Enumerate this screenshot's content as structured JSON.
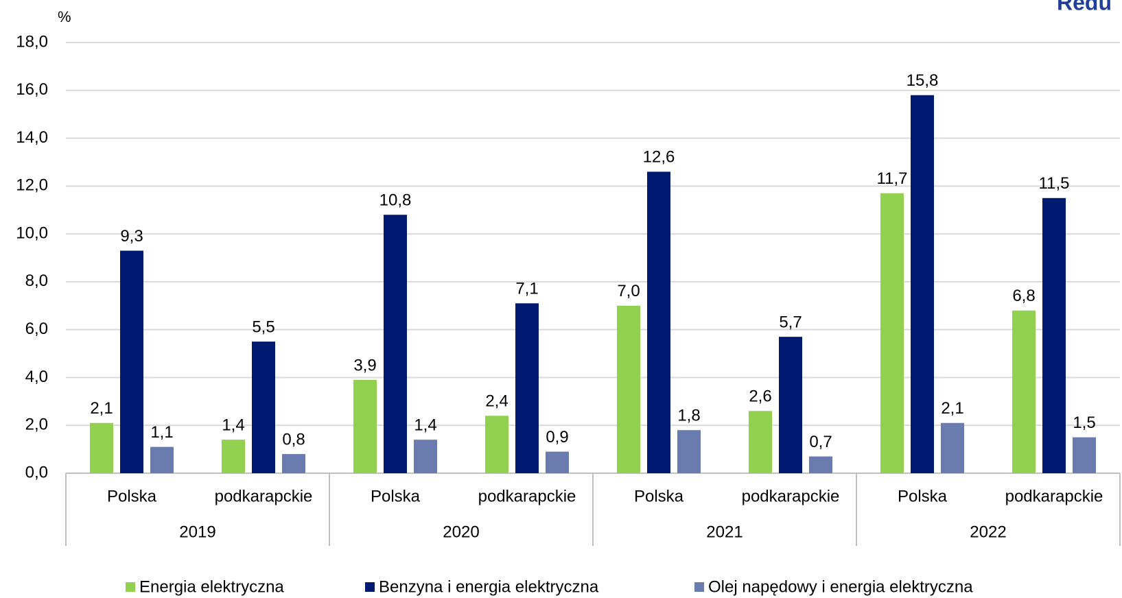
{
  "chart_data": {
    "type": "bar",
    "title": "Redu",
    "y_axis_label": "%",
    "categories": [
      "Polska",
      "podkarapckie",
      "Polska",
      "podkarapckie",
      "Polska",
      "podkarapckie",
      "Polska",
      "podkarapckie"
    ],
    "groups": [
      "2019",
      "2020",
      "2021",
      "2022"
    ],
    "series": [
      {
        "name": "Energia elektryczna",
        "color": "#92d050",
        "values": [
          2.1,
          1.4,
          3.9,
          2.4,
          7.0,
          2.6,
          11.7,
          6.8
        ],
        "value_labels": [
          "2,1",
          "1,4",
          "3,9",
          "2,4",
          "7,0",
          "2,6",
          "11,7",
          "6,8"
        ]
      },
      {
        "name": "Benzyna i energia elektryczna",
        "color": "#001a72",
        "values": [
          9.3,
          5.5,
          10.8,
          7.1,
          12.6,
          5.7,
          15.8,
          11.5
        ],
        "value_labels": [
          "9,3",
          "5,5",
          "10,8",
          "7,1",
          "12,6",
          "5,7",
          "15,8",
          "11,5"
        ]
      },
      {
        "name": "Olej napędowy i energia elektryczna",
        "color": "#6a7bb0",
        "values": [
          1.1,
          0.8,
          1.4,
          0.9,
          1.8,
          0.7,
          2.1,
          1.5
        ],
        "value_labels": [
          "1,1",
          "0,8",
          "1,4",
          "0,9",
          "1,8",
          "0,7",
          "2,1",
          "1,5"
        ]
      }
    ],
    "ylim": [
      0,
      18
    ],
    "yticks": [
      {
        "value": 0,
        "label": "0,0"
      },
      {
        "value": 2,
        "label": "2,0"
      },
      {
        "value": 4,
        "label": "4,0"
      },
      {
        "value": 6,
        "label": "6,0"
      },
      {
        "value": 8,
        "label": "8,0"
      },
      {
        "value": 10,
        "label": "10,0"
      },
      {
        "value": 12,
        "label": "12,0"
      },
      {
        "value": 14,
        "label": "14,0"
      },
      {
        "value": 16,
        "label": "16,0"
      },
      {
        "value": 18,
        "label": "18,0"
      }
    ],
    "grid": true,
    "legend": "bottom"
  }
}
